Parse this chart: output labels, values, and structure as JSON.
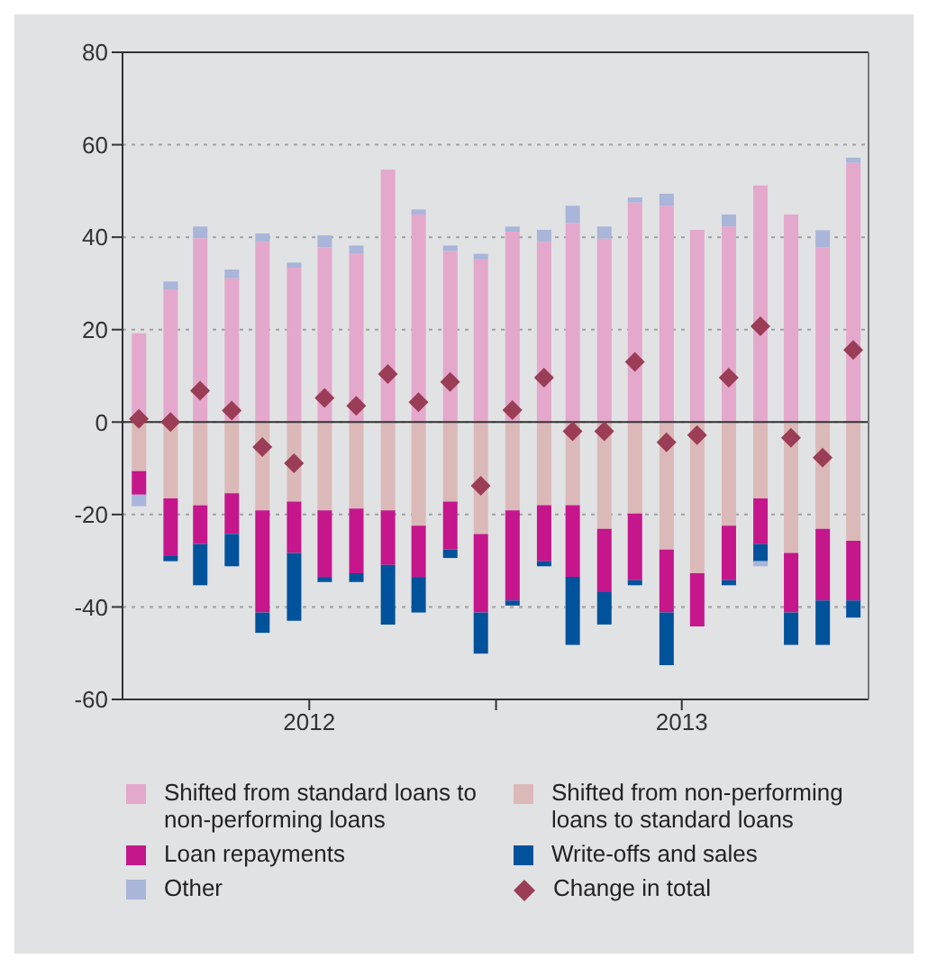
{
  "chart_data": {
    "type": "bar",
    "stacked": true,
    "x": [
      "2012-01",
      "2012-02",
      "2012-03",
      "2012-04",
      "2012-05",
      "2012-06",
      "2012-07",
      "2012-08",
      "2012-09",
      "2012-10",
      "2012-11",
      "2012-12",
      "2013-01",
      "2013-02",
      "2013-03",
      "2013-04",
      "2013-05",
      "2013-06",
      "2013-07",
      "2013-08",
      "2013-09",
      "2013-10",
      "2013-11",
      "2013-12"
    ],
    "xlim": [
      "2011-12-16",
      "2013-12-16"
    ],
    "xticks": [
      {
        "value": "2012-06-16",
        "label": "2012"
      },
      {
        "value": "2012-12-16",
        "label": null
      },
      {
        "value": "2013-06-16",
        "label": "2013"
      }
    ],
    "ylim": [
      -60,
      80
    ],
    "yticks": [
      -60,
      -40,
      -20,
      0,
      20,
      40,
      60,
      80
    ],
    "grid": "y",
    "legend": "bottom",
    "series": [
      {
        "name": "Shifted from standard loans to non-performing loans",
        "color": "#e4a8cc",
        "values": [
          19.2,
          28.7,
          39.8,
          31.1,
          39.0,
          33.4,
          37.8,
          36.4,
          54.6,
          44.9,
          37.0,
          35.2,
          41.2,
          39.0,
          43.1,
          39.7,
          47.5,
          46.8,
          41.6,
          42.3,
          51.2,
          44.9,
          37.8,
          56.1
        ]
      },
      {
        "name": "Shifted from non-performing loans to standard loans",
        "color": "#dbb9b8",
        "values": [
          -10.6,
          -16.5,
          -18.0,
          -15.4,
          -19.1,
          -17.2,
          -19.1,
          -18.7,
          -19.1,
          -22.4,
          -17.2,
          -24.2,
          -19.1,
          -18.0,
          -18.0,
          -23.1,
          -19.8,
          -27.6,
          -32.7,
          -22.4,
          -16.5,
          -28.3,
          -23.1,
          -25.7
        ]
      },
      {
        "name": "Loan repayments",
        "color": "#c5168c",
        "values": [
          -5.1,
          -12.5,
          -8.4,
          -8.8,
          -22.1,
          -11.1,
          -14.4,
          -14.0,
          -11.8,
          -11.1,
          -10.4,
          -17.0,
          -19.5,
          -12.1,
          -15.5,
          -13.7,
          -14.4,
          -13.6,
          -11.5,
          -11.8,
          -9.9,
          -12.9,
          -15.5,
          -12.9
        ]
      },
      {
        "name": "Write-offs and sales",
        "color": "#00529b",
        "values": [
          0,
          -1.1,
          -8.9,
          -7.0,
          -4.4,
          -14.7,
          -1.1,
          -1.9,
          -12.9,
          -7.7,
          -1.8,
          -8.9,
          -1.1,
          -1.1,
          -14.7,
          -7.0,
          -1.1,
          -11.4,
          0,
          -1.1,
          -3.7,
          -7.0,
          -9.6,
          -3.7
        ]
      },
      {
        "name": "Other",
        "color": "#a9b5d9",
        "values": [
          -2.5,
          1.7,
          2.5,
          1.9,
          1.8,
          1.1,
          2.6,
          1.8,
          0,
          1.1,
          1.2,
          1.2,
          1.1,
          2.6,
          3.7,
          2.6,
          1.1,
          2.6,
          0,
          2.6,
          -1.1,
          0,
          3.7,
          1.1
        ]
      },
      {
        "name": "Change in total",
        "type": "scatter",
        "marker": "diamond",
        "color": "#9b3d56",
        "values": [
          0.7,
          0,
          6.8,
          2.5,
          -5.4,
          -8.9,
          5.2,
          3.5,
          10.4,
          4.3,
          8.7,
          -13.8,
          2.6,
          9.6,
          -2.0,
          -2.0,
          13.0,
          -4.4,
          -2.8,
          9.6,
          20.7,
          -3.4,
          -7.7,
          15.6
        ]
      }
    ]
  }
}
